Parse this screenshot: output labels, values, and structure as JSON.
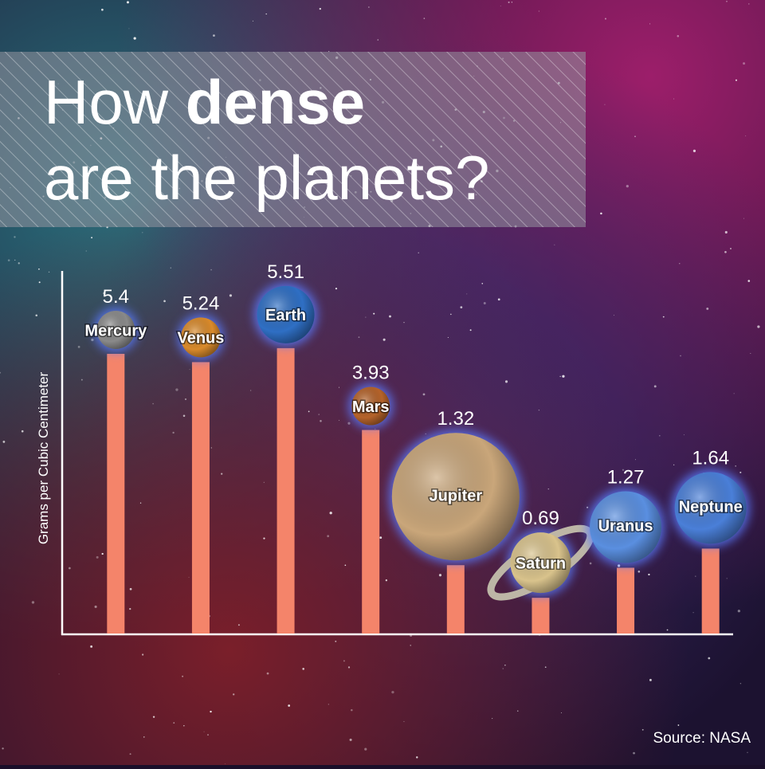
{
  "chart_data": {
    "type": "bar",
    "title": {
      "lead": "How",
      "bold": "dense",
      "rest": "are the planets?"
    },
    "y_label": "Grams per Cubic Centimeter",
    "source": "Source: NASA",
    "categories": [
      "Mercury",
      "Venus",
      "Earth",
      "Mars",
      "Jupiter",
      "Saturn",
      "Uranus",
      "Neptune"
    ],
    "values": [
      5.4,
      5.24,
      5.51,
      3.93,
      1.32,
      0.69,
      1.27,
      1.64
    ],
    "color": "#f4846a",
    "planet_colors": [
      "#8a8a8a",
      "#d98a2b",
      "#2f6fc4",
      "#b5632a",
      "#c9a67a",
      "#d9c38c",
      "#5a8fe0",
      "#4a7fd8"
    ],
    "ylim": [
      0,
      7
    ]
  }
}
